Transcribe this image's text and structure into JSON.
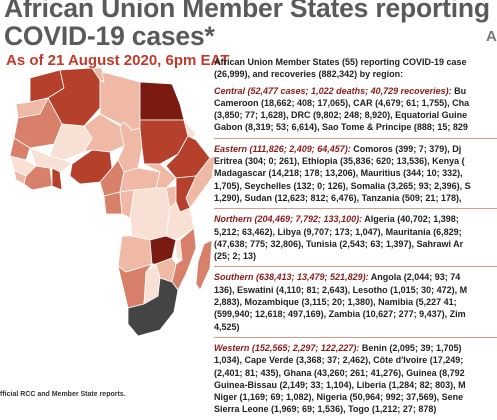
{
  "header": {
    "title_line1": "African Union Member States reporting",
    "title_line2": "COVID-19 cases*",
    "as_of": "As of 21 August 2020, 6pm EAT",
    "corner_text": "A"
  },
  "map": {
    "colors": {
      "darkest": "#7b1a10",
      "dark": "#b5412c",
      "medium": "#d9806a",
      "light": "#efb9a6",
      "lightest": "#f8e0d5",
      "grey": "#444444",
      "border": "#ffffff"
    }
  },
  "source_note": "fficial RCC and Member State reports.",
  "summary": {
    "intro_line1": "African Union Member States (55) reporting COVID-19 case",
    "intro_line2": "(26,999), and recoveries (882,342) by region:"
  },
  "regions": [
    {
      "name": "Central (52,477 cases; 1,022 deaths; 40,729 recoveries):",
      "first_line_rest": " Bu",
      "lines": [
        "Cameroon (18,662; 408; 17,065), CAR (4,679; 61; 1,755), Cha",
        "(3,850; 77; 1,628), DRC (9,802; 248; 8,920), Equatorial Guine",
        "Gabon (8,319; 53; 6,614), Sao Tome & Principe (888; 15; 829"
      ]
    },
    {
      "name": "Eastern (111,826; 2,409; 64,457):",
      "first_line_rest": " Comoros (399; 7; 379), Dj",
      "lines": [
        "Eritrea (304; 0; 261), Ethiopia (35,836; 620; 13,536), Kenya (",
        "Madagascar (14,218; 178; 13,206), Mauritius (344; 10; 332),",
        "1,705), Seychelles (132; 0; 126), Somalia (3,265; 93; 2,396), S",
        "1,290), Sudan (12,623; 812; 6,476), Tanzania (509; 21; 178),"
      ]
    },
    {
      "name": "Northern (204,469; 7,792; 133,100):",
      "first_line_rest": " Algeria (40,702; 1,398;",
      "lines": [
        "5,212; 63,462), Libya (9,707; 173; 1,047), Mauritania (6,829;",
        "(47,638; 775; 32,806), Tunisia (2,543; 63; 1,397), Sahrawi Ar",
        "(25; 2; 13)"
      ]
    },
    {
      "name": "Southern (638,413; 13,479; 521,829):",
      "first_line_rest": " Angola (2,044; 93; 74",
      "lines": [
        "136), Eswatini (4,110; 81; 2,643), Lesotho (1,015; 30; 472), M",
        "2,883), Mozambique (3,115; 20; 1,380),  Namibia (5,227 41;",
        "(599,940; 12,618; 497,169), Zambia (10,627; 277; 9,437), Zim",
        "4,525)"
      ]
    },
    {
      "name": "Western (152,565; 2,297; 122,227):",
      "first_line_rest": " Benin (2,095; 39; 1,705)",
      "lines": [
        "1,034), Cape Verde (3,368; 37; 2,462), Côte d'Ivoire (17,249;",
        "(2,401; 81; 435), Ghana (43,260; 261; 41,276), Guinea (8,792",
        "Guinea-Bissau (2,149; 33; 1,104), Liberia (1,284; 82; 803), M",
        "Niger (1,169; 69; 1,082), Nigeria (50,964; 992; 37,569), Sene",
        "Sierra Leone (1,969; 69; 1,536), Togo (1,212; 27; 878)"
      ]
    }
  ]
}
